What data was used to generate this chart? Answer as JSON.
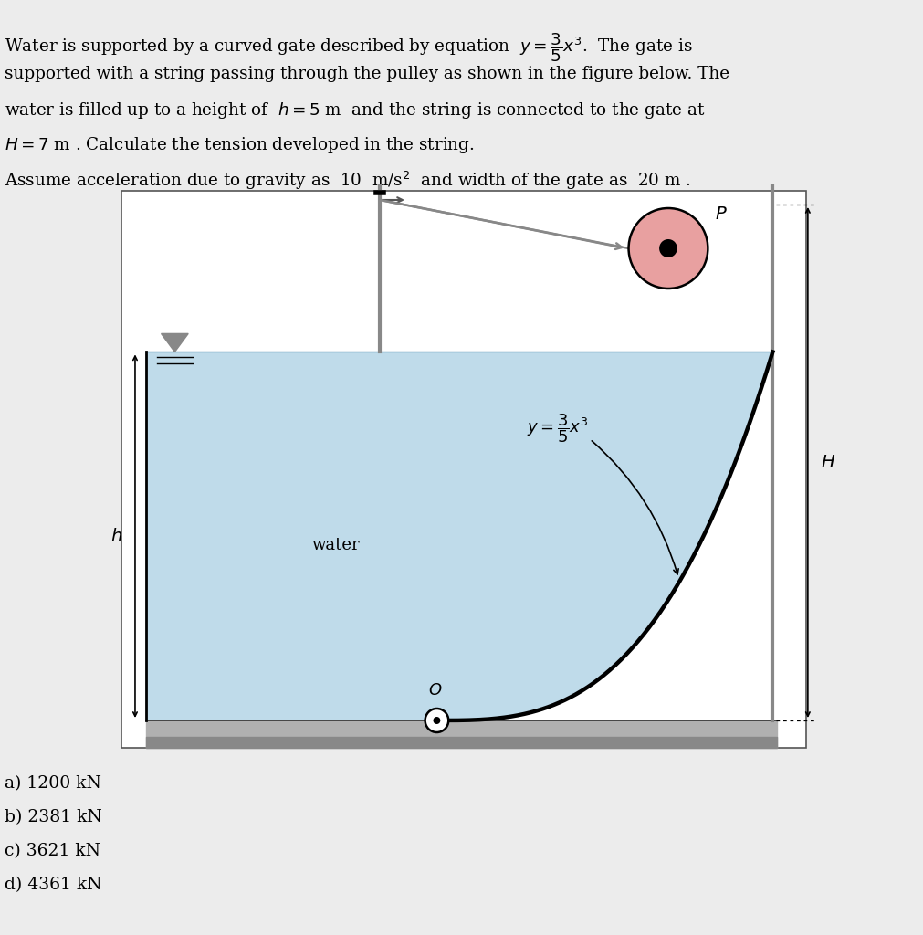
{
  "bg_color": "#ececec",
  "box_bg": "#ffffff",
  "water_color": "#b8d8e8",
  "text_color": "#000000",
  "title_lines": [
    "Water is supported by a curved gate described by equation  $y = \\dfrac{3}{5}x^3$.  The gate is",
    "supported with a string passing through the pulley as shown in the figure below. The",
    "water is filled up to a height of  $h = 5$ m  and the string is connected to the gate at",
    "$H = 7$ m . Calculate the tension developed in the string.",
    "Assume acceleration due to gravity as  10  m/s$^2$  and width of the gate as  20 m ."
  ],
  "answers": [
    "a) 1200 kN",
    "b) 2381 kN",
    "c) 3621 kN",
    "d) 4361 kN"
  ],
  "gate_eq_label": "$y = \\dfrac{3}{5}x^3$",
  "label_h": "$h$",
  "label_H": "$H$",
  "label_O": "$O$",
  "label_P": "$P$",
  "label_water": "water",
  "pulley_color": "#e8a0a0",
  "wall_color": "#888888",
  "string_color": "#888888"
}
